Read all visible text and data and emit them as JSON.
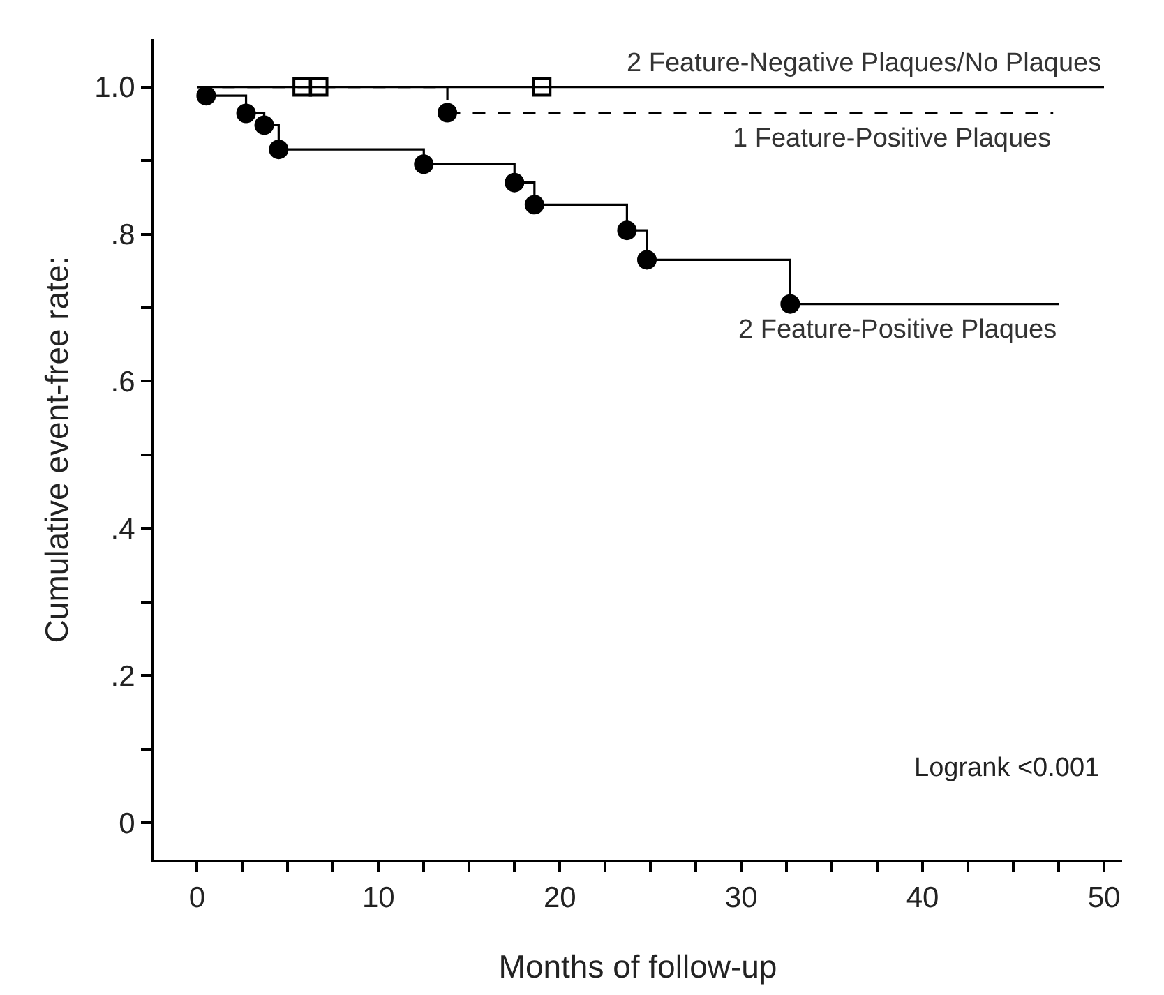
{
  "chart_data": {
    "type": "step",
    "xlabel": "Months of follow-up",
    "ylabel": "Cumulative event-free rate:",
    "xlim": [
      -2.4,
      51
    ],
    "ylim": [
      -0.05,
      1.065
    ],
    "xticks": [
      0,
      {
        "value": 2.5,
        "label": null
      },
      {
        "value": 5,
        "label": null
      },
      {
        "value": 7.5,
        "label": null
      },
      10,
      {
        "value": 12.5,
        "label": null
      },
      {
        "value": 15,
        "label": null
      },
      {
        "value": 17.5,
        "label": null
      },
      20,
      {
        "value": 22.5,
        "label": null
      },
      {
        "value": 25,
        "label": null
      },
      {
        "value": 27.5,
        "label": null
      },
      30,
      {
        "value": 32.5,
        "label": null
      },
      {
        "value": 35,
        "label": null
      },
      {
        "value": 37.5,
        "label": null
      },
      40,
      {
        "value": 42.5,
        "label": null
      },
      {
        "value": 45,
        "label": null
      },
      {
        "value": 47.5,
        "label": null
      },
      50
    ],
    "yticks": [
      0,
      {
        "value": 0.1,
        "label": null
      },
      {
        "value": 0.2,
        "label": ".2"
      },
      {
        "value": 0.3,
        "label": null
      },
      {
        "value": 0.4,
        "label": ".4"
      },
      {
        "value": 0.5,
        "label": null
      },
      {
        "value": 0.6,
        "label": ".6"
      },
      {
        "value": 0.7,
        "label": null
      },
      {
        "value": 0.8,
        "label": ".8"
      },
      {
        "value": 0.9,
        "label": null
      },
      {
        "value": 1.0,
        "label": "1.0"
      }
    ],
    "series": [
      {
        "name": "2 Feature-Negative Plaques/No Plaques",
        "color": "#000000",
        "line_style": "solid",
        "x": [
          0,
          50
        ],
        "values": [
          1.0,
          1.0
        ]
      },
      {
        "name": "1 Feature-Positive Plaques",
        "color": "#000000",
        "line_style": "dashed",
        "x": [
          0,
          13.8,
          47.2
        ],
        "values": [
          1.0,
          0.965,
          0.965
        ]
      },
      {
        "name": "2 Feature-Positive Plaques",
        "color": "#000000",
        "line_style": "solid",
        "x": [
          0,
          0.5,
          2.7,
          3.7,
          4.5,
          12.5,
          17.5,
          18.6,
          23.7,
          24.8,
          32.7,
          47.5
        ],
        "values": [
          1.0,
          0.988,
          0.964,
          0.948,
          0.915,
          0.895,
          0.87,
          0.84,
          0.805,
          0.765,
          0.705,
          0.705
        ]
      },
      {
        "type": "scatter",
        "marker": "square",
        "color": "#000000",
        "x": [
          5.8,
          6.7,
          19.0
        ],
        "values": [
          1.0,
          1.0,
          1.0
        ]
      },
      {
        "type": "scatter",
        "marker": "circle",
        "color": "#000000",
        "x": [
          13.8,
          0.5,
          2.7,
          3.7,
          4.5,
          12.5,
          17.5,
          18.6,
          23.7,
          24.8,
          32.7
        ],
        "values": [
          0.965,
          0.988,
          0.964,
          0.948,
          0.915,
          0.895,
          0.87,
          0.84,
          0.805,
          0.765,
          0.705
        ]
      }
    ],
    "annotations": [
      "Logrank <0.001"
    ]
  }
}
